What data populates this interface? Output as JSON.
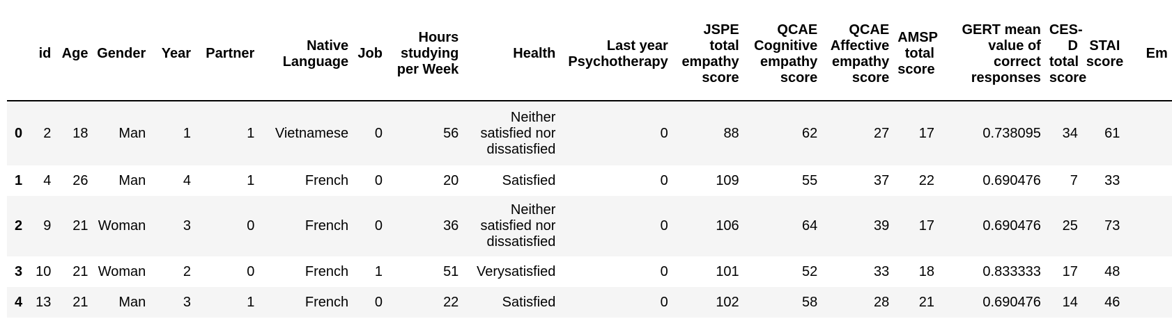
{
  "table": {
    "index_header": "",
    "columns": [
      "id",
      "Age",
      "Gender",
      "Year",
      "Partner",
      "Native Language",
      "Job",
      "Hours studying per Week",
      "Health",
      "Last year Psychotherapy",
      "JSPE total empathy score",
      "QCAE Cognitive empathy score",
      "QCAE Affective empathy score",
      "AMSP total score",
      "GERT mean value of correct responses",
      "CES-D total score",
      "STAI score",
      "Em Exh"
    ],
    "rows": [
      {
        "index": "0",
        "cells": [
          "2",
          "18",
          "Man",
          "1",
          "1",
          "Vietnamese",
          "0",
          "56",
          "Neither satisfied nor dissatisfied",
          "0",
          "88",
          "62",
          "27",
          "17",
          "0.738095",
          "34",
          "61",
          ""
        ]
      },
      {
        "index": "1",
        "cells": [
          "4",
          "26",
          "Man",
          "4",
          "1",
          "French",
          "0",
          "20",
          "Satisfied",
          "0",
          "109",
          "55",
          "37",
          "22",
          "0.690476",
          "7",
          "33",
          ""
        ]
      },
      {
        "index": "2",
        "cells": [
          "9",
          "21",
          "Woman",
          "3",
          "0",
          "French",
          "0",
          "36",
          "Neither satisfied nor dissatisfied",
          "0",
          "106",
          "64",
          "39",
          "17",
          "0.690476",
          "25",
          "73",
          ""
        ]
      },
      {
        "index": "3",
        "cells": [
          "10",
          "21",
          "Woman",
          "2",
          "0",
          "French",
          "1",
          "51",
          "Verysatisfied",
          "0",
          "101",
          "52",
          "33",
          "18",
          "0.833333",
          "17",
          "48",
          ""
        ]
      },
      {
        "index": "4",
        "cells": [
          "13",
          "21",
          "Man",
          "3",
          "1",
          "French",
          "0",
          "22",
          "Satisfied",
          "0",
          "102",
          "58",
          "28",
          "21",
          "0.690476",
          "14",
          "46",
          ""
        ]
      }
    ]
  }
}
